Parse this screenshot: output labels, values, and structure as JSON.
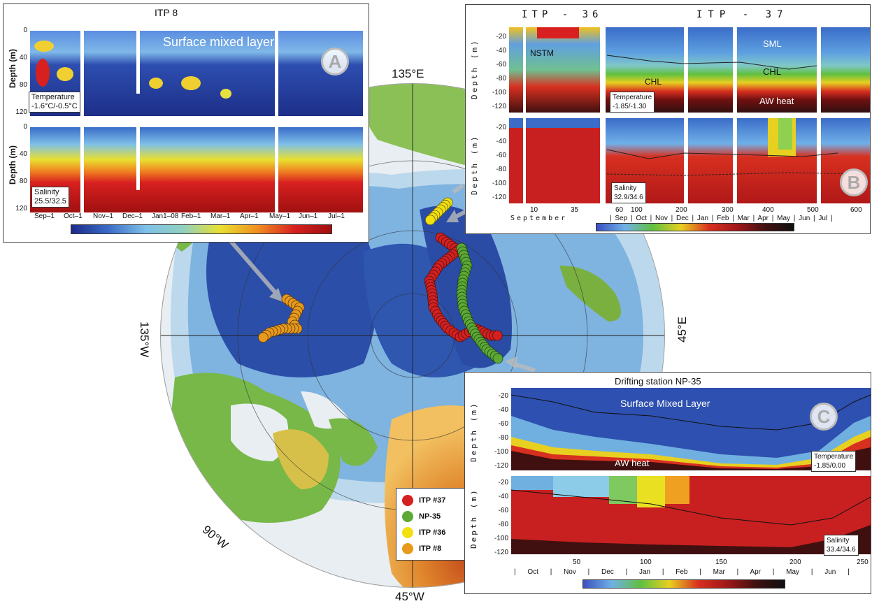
{
  "map": {
    "labels": {
      "top": "135°E",
      "left": "135°W",
      "right": "45°E",
      "bottom": "45°W",
      "lower_left": "90°W"
    },
    "legend": [
      {
        "label": "ITP #37",
        "color": "#d42020"
      },
      {
        "label": "NP-35",
        "color": "#5caa35"
      },
      {
        "label": "ITP #36",
        "color": "#f2e010"
      },
      {
        "label": "ITP #8",
        "color": "#e89a1c"
      }
    ]
  },
  "panelA": {
    "title": "ITP 8",
    "badge": "A",
    "annotation": "Surface mixed layer",
    "ylabel": "Depth (m)",
    "yticks": [
      "0",
      "40",
      "80",
      "120"
    ],
    "temp_label": "Temperature",
    "temp_range": "-1.6°C/-0.5°C",
    "sal_label": "Salinity",
    "sal_range": "25.5/32.5",
    "xticks": [
      "Sep–1",
      "Oct–1",
      "Nov–1",
      "Dec–1",
      "Jan1–08",
      "Feb–1",
      "Mar–1",
      "Apr–1",
      "May–1",
      "Jun–1",
      "Jul–1"
    ]
  },
  "panelB": {
    "title_left": "ITP - 36",
    "title_right": "ITP - 37",
    "badge": "B",
    "ylabel": "Depth (m)",
    "yticks": [
      "-20",
      "-40",
      "-60",
      "-80",
      "-100",
      "-120"
    ],
    "ann_nstm": "NSTM",
    "ann_chl1": "CHL",
    "ann_sml": "SML",
    "ann_chl2": "CHL",
    "ann_aw": "AW heat",
    "temp_label": "Temperature",
    "temp_range": "-1.85/-1.30",
    "sal_label": "Salinity",
    "sal_range": "32.9/34.6",
    "xticks_left": [
      "10",
      "35",
      "60"
    ],
    "xlabel_left": "September",
    "xticks_right": [
      "100",
      "200",
      "300",
      "400",
      "500",
      "600"
    ],
    "months": "| Sep | Oct | Nov | Dec | Jan | Feb | Mar | Apr | May | Jun | Jul |"
  },
  "panelC": {
    "title": "Drifting station NP-35",
    "badge": "C",
    "ylabel": "Depth (m)",
    "yticks": [
      "-20",
      "-40",
      "-60",
      "-80",
      "-100",
      "-120"
    ],
    "ann_sml": "Surface Mixed Layer",
    "ann_aw": "AW heat",
    "temp_label": "Temperature",
    "temp_range": "-1.85/0.00",
    "sal_label": "Salinity",
    "sal_range": "33.4/34.6",
    "xticks": [
      "50",
      "100",
      "150",
      "200",
      "250"
    ],
    "months": "| Oct | Nov | Dec | Jan | Feb | Mar | Apr | May | Jun |"
  }
}
